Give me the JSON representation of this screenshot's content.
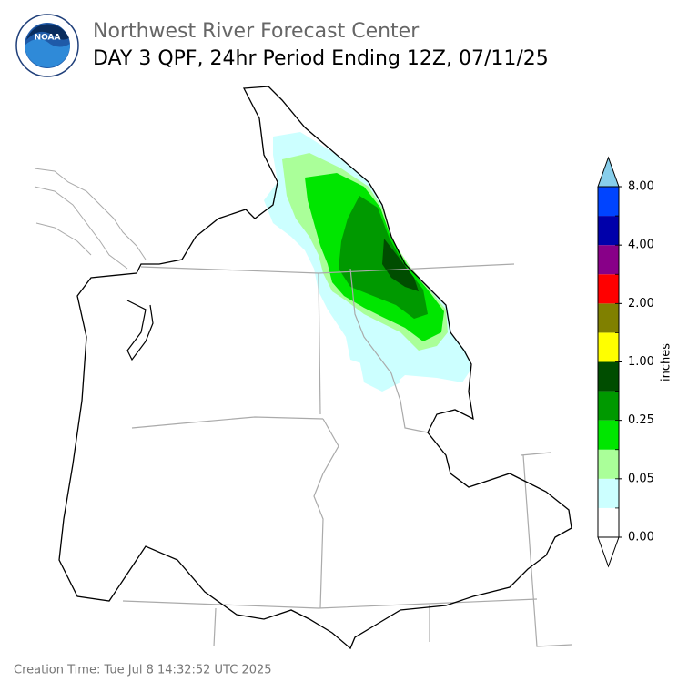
{
  "header": {
    "organization": "Northwest River Forecast Center",
    "title": "DAY 3 QPF, 24hr Period Ending 12Z, 07/11/25",
    "logo_text": "NOAA"
  },
  "colorbar": {
    "label": "inches",
    "colors": [
      "#ffffff",
      "#ccffff",
      "#aaff99",
      "#00e600",
      "#009900",
      "#004d00",
      "#ffff00",
      "#808000",
      "#ff0000",
      "#880088",
      "#0000aa",
      "#0044ff"
    ],
    "over_color": "#87ceeb",
    "under_color": "#ffffff",
    "tick_labels": [
      "0.00",
      "0.05",
      "0.25",
      "1.00",
      "2.00",
      "4.00",
      "8.00"
    ]
  },
  "footer": {
    "creation_time": "Creation Time: Tue Jul 8 14:32:52 UTC 2025"
  }
}
